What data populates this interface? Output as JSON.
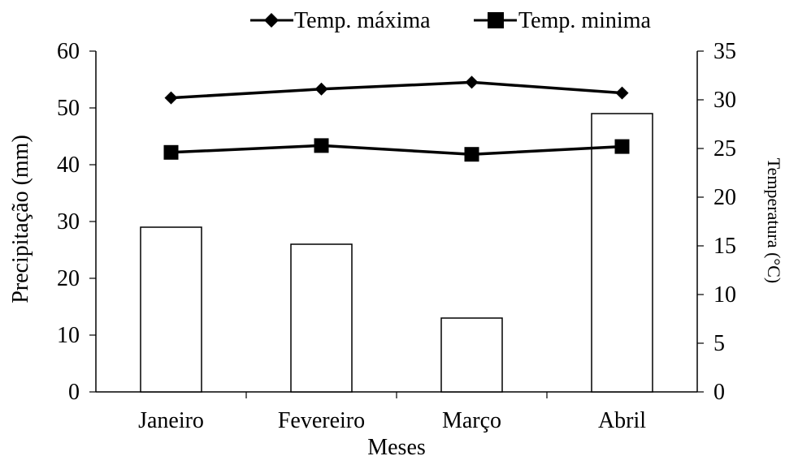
{
  "chart_data": {
    "type": "bar+line",
    "categories": [
      "Janeiro",
      "Fevereiro",
      "Março",
      "Abril"
    ],
    "x_axis_label": "Meses",
    "y_left_label": "Precipitação (mm)",
    "y_right_label": "Temperatura (°C)",
    "y_left": {
      "min": 0,
      "max": 60,
      "step": 10,
      "ticks": [
        0,
        10,
        20,
        30,
        40,
        50,
        60
      ]
    },
    "y_right": {
      "min": 0,
      "max": 35,
      "step": 5,
      "ticks": [
        0,
        5,
        10,
        15,
        20,
        25,
        30,
        35
      ]
    },
    "precipitation": [
      29,
      26,
      13,
      49
    ],
    "temperature_series": [
      {
        "name": "Temp. máxima",
        "values": [
          30.2,
          31.1,
          31.8,
          30.7
        ],
        "marker": "diamond",
        "color": "#000000"
      },
      {
        "name": "Temp. minima",
        "values": [
          24.6,
          25.3,
          24.4,
          25.2
        ],
        "marker": "square",
        "color": "#000000"
      }
    ],
    "grid": false,
    "legend_position": "top-right",
    "colors": {
      "bar_fill": "#ffffff",
      "bar_stroke": "#000000",
      "axis": "#000000",
      "text": "#000000"
    }
  }
}
